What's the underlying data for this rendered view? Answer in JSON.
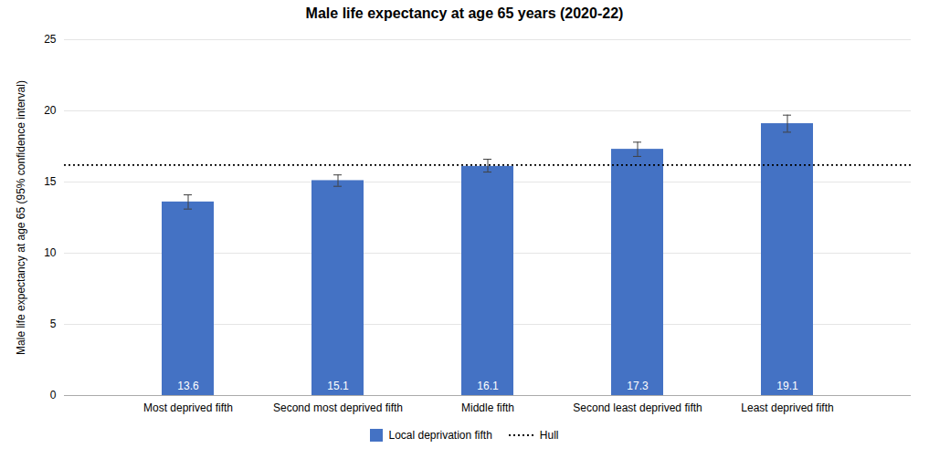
{
  "chart_data": {
    "type": "bar",
    "title": "Male life expectancy at age 65 years (2020-22)",
    "ylabel": "Male life expectancy at age 65 (95% confidence interval)",
    "categories": [
      "Most deprived fifth",
      "Second most deprived fifth",
      "Middle fifth",
      "Second least deprived fifth",
      "Least deprived fifth"
    ],
    "series": [
      {
        "name": "Local deprivation fifth",
        "color": "#4472C4",
        "values": [
          13.6,
          15.1,
          16.1,
          17.3,
          19.1
        ],
        "errors_low": [
          0.5,
          0.4,
          0.4,
          0.5,
          0.6
        ],
        "errors_high": [
          0.5,
          0.4,
          0.5,
          0.5,
          0.6
        ]
      }
    ],
    "reference_lines": [
      {
        "name": "Hull",
        "value": 16.2,
        "color": "#000000",
        "line_style": "dotted"
      }
    ],
    "ylim": [
      0,
      25
    ],
    "yticks": [
      0,
      5,
      10,
      15,
      20,
      25
    ],
    "grid": true,
    "legend": "bottom",
    "data_labels": true
  }
}
